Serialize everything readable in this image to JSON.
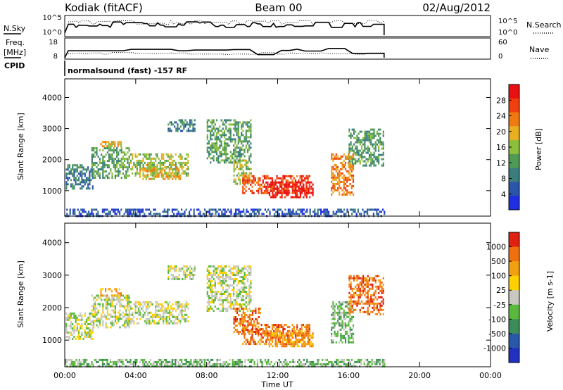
{
  "header": {
    "radar": "Kodiak (fitACF)",
    "beam": "Beam 00",
    "date": "02/Aug/2012"
  },
  "panels": {
    "nsky_label": "N.Sky",
    "nsearch_label": "N.Search",
    "freq_label_1": "Freq.",
    "freq_label_2": "[MHz]",
    "nave_label": "Nave",
    "cpid_label": "CPID",
    "cpid_text": "normalsound (fast) -157 RF",
    "noise_ticks_left": [
      "10^5",
      "10^0"
    ],
    "noise_ticks_right": [
      "10^5",
      "10^0"
    ],
    "freq_ticks_left": [
      "18",
      "8"
    ],
    "freq_ticks_right": [
      "60",
      "0"
    ]
  },
  "colors": {
    "power_scale": [
      "#1f2ee0",
      "#2a55a8",
      "#3b7d7d",
      "#4f9a55",
      "#8cbf3c",
      "#e8b020",
      "#f07a12",
      "#f04010",
      "#e81010"
    ],
    "velocity_scale": [
      "#2030c0",
      "#2a58a8",
      "#3c8c5a",
      "#5ab83c",
      "#c8c8c0",
      "#ffd000",
      "#f0a010",
      "#f07010",
      "#e02010"
    ]
  },
  "chart_data": [
    {
      "type": "heatmap",
      "name": "power",
      "ylabel": "Slant Range [km]",
      "xlabel": "Time UT",
      "x_ticks": [
        "00:00",
        "04:00",
        "08:00",
        "12:00",
        "16:00",
        "20:00",
        "00:00"
      ],
      "y_ticks": [
        "1000",
        "2000",
        "3000",
        "4000"
      ],
      "xlim": [
        0,
        24
      ],
      "ylim": [
        180,
        4600
      ],
      "colorbar_label": "Power [dB]",
      "colorbar_ticks": [
        "28",
        "24",
        "20",
        "16",
        "12",
        "8",
        "4"
      ],
      "data_end_hour": 18,
      "regions": [
        {
          "t0": 0.05,
          "t1": 1.6,
          "r0": 1050,
          "r1": 1850,
          "level": 2
        },
        {
          "t0": 1.5,
          "t1": 3.6,
          "r0": 1400,
          "r1": 2400,
          "level": 3
        },
        {
          "t0": 2.0,
          "t1": 3.2,
          "r0": 2400,
          "r1": 2600,
          "level": 5
        },
        {
          "t0": 3.6,
          "t1": 7.0,
          "r0": 1500,
          "r1": 2200,
          "level": 4
        },
        {
          "t0": 4.2,
          "t1": 6.5,
          "r0": 1400,
          "r1": 1750,
          "level": 5
        },
        {
          "t0": 5.8,
          "t1": 7.3,
          "r0": 2900,
          "r1": 3300,
          "level": 2
        },
        {
          "t0": 8.0,
          "t1": 10.5,
          "r0": 1900,
          "r1": 3300,
          "level": 3
        },
        {
          "t0": 9.5,
          "t1": 10.5,
          "r0": 1200,
          "r1": 2000,
          "level": 4
        },
        {
          "t0": 10.0,
          "t1": 13.8,
          "r0": 900,
          "r1": 1500,
          "level": 7
        },
        {
          "t0": 11.5,
          "t1": 14.0,
          "r0": 800,
          "r1": 1300,
          "level": 8
        },
        {
          "t0": 15.0,
          "t1": 16.3,
          "r0": 900,
          "r1": 2200,
          "level": 6
        },
        {
          "t0": 16.0,
          "t1": 18.0,
          "r0": 1800,
          "r1": 3000,
          "level": 3
        },
        {
          "t0": 0.0,
          "t1": 18.0,
          "r0": 200,
          "r1": 420,
          "level": 1
        }
      ]
    },
    {
      "type": "heatmap",
      "name": "velocity",
      "ylabel": "Slant Range [km]",
      "xlabel": "Time UT",
      "x_ticks": [
        "00:00",
        "04:00",
        "08:00",
        "12:00",
        "16:00",
        "20:00",
        "00:00"
      ],
      "y_ticks": [
        "1000",
        "2000",
        "3000",
        "4000"
      ],
      "xlim": [
        0,
        24
      ],
      "ylim": [
        180,
        4600
      ],
      "colorbar_label": "Velocity [m s-1]",
      "colorbar_ticks": [
        "1000",
        "500",
        "100",
        "25",
        "-25",
        "-100",
        "-500",
        "-1000"
      ],
      "data_end_hour": 18,
      "regions": [
        {
          "t0": 0.05,
          "t1": 1.6,
          "r0": 1050,
          "r1": 1850,
          "level": 4
        },
        {
          "t0": 1.5,
          "t1": 3.6,
          "r0": 1400,
          "r1": 2400,
          "level": 4
        },
        {
          "t0": 2.0,
          "t1": 3.2,
          "r0": 2400,
          "r1": 2600,
          "level": 6
        },
        {
          "t0": 3.6,
          "t1": 7.0,
          "r0": 1500,
          "r1": 2200,
          "level": 4
        },
        {
          "t0": 5.8,
          "t1": 7.3,
          "r0": 2900,
          "r1": 3300,
          "level": 4
        },
        {
          "t0": 8.0,
          "t1": 10.5,
          "r0": 1900,
          "r1": 3300,
          "level": 4
        },
        {
          "t0": 9.5,
          "t1": 11.0,
          "r0": 1200,
          "r1": 2000,
          "level": 7
        },
        {
          "t0": 10.0,
          "t1": 13.8,
          "r0": 900,
          "r1": 1500,
          "level": 7
        },
        {
          "t0": 11.5,
          "t1": 14.0,
          "r0": 800,
          "r1": 1300,
          "level": 6
        },
        {
          "t0": 15.0,
          "t1": 16.3,
          "r0": 900,
          "r1": 2200,
          "level": 3
        },
        {
          "t0": 16.0,
          "t1": 18.0,
          "r0": 1800,
          "r1": 3000,
          "level": 7
        },
        {
          "t0": 0.0,
          "t1": 18.0,
          "r0": 200,
          "r1": 420,
          "level": 3
        }
      ]
    }
  ]
}
